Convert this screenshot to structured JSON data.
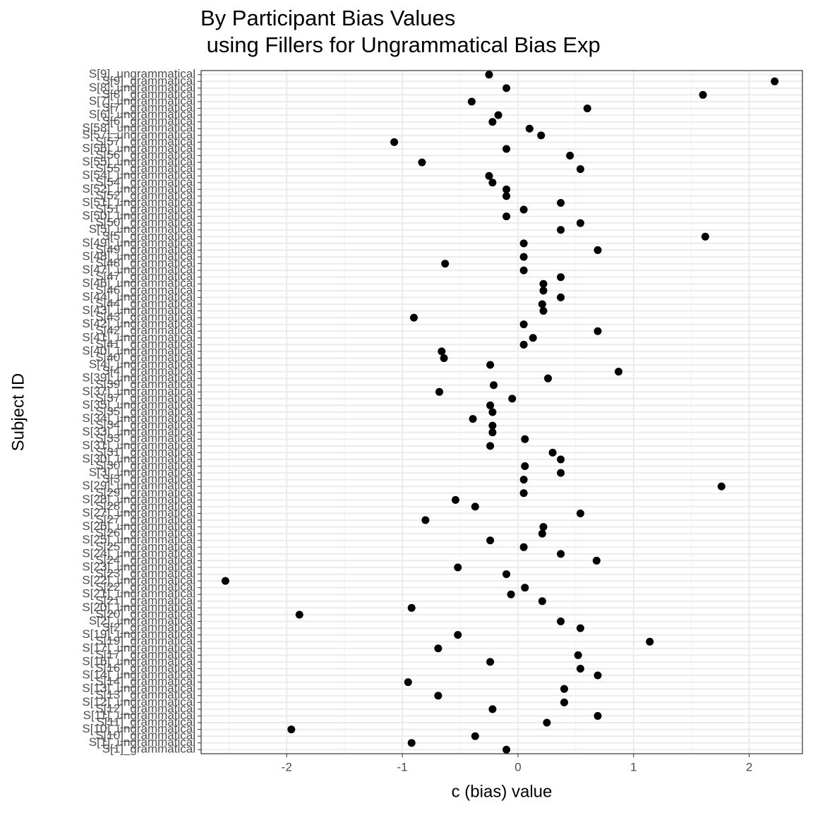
{
  "chart_data": {
    "type": "dot",
    "title": [
      "By Participant Bias Values",
      " using Fillers for Ungrammatical Bias Exp"
    ],
    "x_label": "c (bias) value",
    "y_label": "Subject ID",
    "categories": [
      "S[1]_grammatical",
      "S[1]_ungrammatical",
      "S[10]_grammatical",
      "S[10]_ungrammatical",
      "S[11]_grammatical",
      "S[11]_ungrammatical",
      "S[12]_grammatical",
      "S[12]_ungrammatical",
      "S[13]_grammatical",
      "S[13]_ungrammatical",
      "S[14]_grammatical",
      "S[14]_ungrammatical",
      "S[16]_grammatical",
      "S[16]_ungrammatical",
      "S[17]_grammatical",
      "S[17]_ungrammatical",
      "S[19]_grammatical",
      "S[19]_ungrammatical",
      "S[2]_grammatical",
      "S[2]_ungrammatical",
      "S[20]_grammatical",
      "S[20]_ungrammatical",
      "S[21]_grammatical",
      "S[21]_ungrammatical",
      "S[22]_grammatical",
      "S[22]_ungrammatical",
      "S[23]_grammatical",
      "S[23]_ungrammatical",
      "S[24]_grammatical",
      "S[24]_ungrammatical",
      "S[25]_grammatical",
      "S[25]_ungrammatical",
      "S[26]_grammatical",
      "S[26]_ungrammatical",
      "S[27]_grammatical",
      "S[27]_ungrammatical",
      "S[28]_grammatical",
      "S[28]_ungrammatical",
      "S[29]_grammatical",
      "S[29]_ungrammatical",
      "S[3]_grammatical",
      "S[3]_ungrammatical",
      "S[30]_grammatical",
      "S[30]_ungrammatical",
      "S[31]_grammatical",
      "S[31]_ungrammatical",
      "S[33]_grammatical",
      "S[33]_ungrammatical",
      "S[34]_grammatical",
      "S[34]_ungrammatical",
      "S[35]_grammatical",
      "S[35]_ungrammatical",
      "S[37]_grammatical",
      "S[37]_ungrammatical",
      "S[39]_grammatical",
      "S[39]_ungrammatical",
      "S[4]_grammatical",
      "S[4]_ungrammatical",
      "S[40]_grammatical",
      "S[40]_ungrammatical",
      "S[41]_grammatical",
      "S[41]_ungrammatical",
      "S[42]_grammatical",
      "S[42]_ungrammatical",
      "S[43]_grammatical",
      "S[43]_ungrammatical",
      "S[44]_grammatical",
      "S[44]_ungrammatical",
      "S[46]_grammatical",
      "S[46]_ungrammatical",
      "S[47]_grammatical",
      "S[47]_ungrammatical",
      "S[48]_grammatical",
      "S[48]_ungrammatical",
      "S[49]_grammatical",
      "S[49]_ungrammatical",
      "S[5]_grammatical",
      "S[5]_ungrammatical",
      "S[50]_grammatical",
      "S[50]_ungrammatical",
      "S[51]_grammatical",
      "S[51]_ungrammatical",
      "S[52]_grammatical",
      "S[52]_ungrammatical",
      "S[54]_grammatical",
      "S[54]_ungrammatical",
      "S[55]_grammatical",
      "S[55]_ungrammatical",
      "S[56]_grammatical",
      "S[56]_ungrammatical",
      "S[57]_grammatical",
      "S[57]_ungrammatical",
      "S[58]_ungrammatical",
      "S[6]_grammatical",
      "S[6]_ungrammatical",
      "S[7]_grammatical",
      "S[7]_ungrammatical",
      "S[8]_grammatical",
      "S[8]_ungrammatical",
      "S[9]_grammatical",
      "S[9]_ungrammatical"
    ],
    "values": [
      -0.1,
      -0.92,
      -0.37,
      -1.96,
      0.25,
      0.69,
      -0.22,
      0.4,
      -0.69,
      0.4,
      -0.95,
      0.69,
      0.54,
      -0.24,
      0.52,
      -0.69,
      1.14,
      -0.52,
      0.54,
      0.37,
      -1.89,
      -0.92,
      0.21,
      -0.06,
      0.06,
      -2.53,
      -0.1,
      -0.52,
      0.68,
      0.37,
      0.05,
      -0.24,
      0.21,
      0.22,
      -0.8,
      0.54,
      -0.37,
      -0.54,
      0.05,
      1.76,
      0.05,
      0.37,
      0.06,
      0.37,
      0.3,
      -0.24,
      0.06,
      -0.22,
      -0.22,
      -0.39,
      -0.22,
      -0.24,
      -0.05,
      -0.68,
      -0.21,
      0.26,
      0.87,
      -0.24,
      -0.64,
      -0.66,
      0.05,
      0.13,
      0.69,
      0.05,
      -0.9,
      0.22,
      0.21,
      0.37,
      0.22,
      0.22,
      0.37,
      0.05,
      -0.63,
      0.05,
      0.69,
      0.05,
      1.62,
      0.37,
      0.54,
      -0.1,
      0.05,
      0.37,
      -0.1,
      -0.1,
      -0.22,
      -0.25,
      0.54,
      -0.83,
      0.45,
      -0.1,
      -1.07,
      0.2,
      0.1,
      -0.22,
      -0.17,
      0.6,
      -0.4,
      1.6,
      -0.1,
      2.22,
      -0.25
    ],
    "color": "#000000",
    "xlim": [
      -2.74,
      2.46
    ],
    "xticks": [
      -2,
      -1,
      0,
      1,
      2
    ],
    "grid": true
  }
}
